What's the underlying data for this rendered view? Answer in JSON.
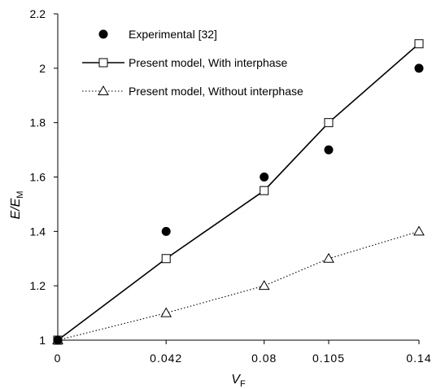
{
  "chart_data": {
    "type": "line",
    "xlabel": "V",
    "xlabel_sub": "F",
    "ylabel": "E/E",
    "ylabel_sub": "M",
    "x": [
      0,
      0.042,
      0.08,
      0.105,
      0.14
    ],
    "x_tick_labels": [
      "0",
      "0.042",
      "0.08",
      "0.105",
      "0.14"
    ],
    "ylim": [
      1,
      2.2
    ],
    "y_ticks": [
      1,
      1.2,
      1.4,
      1.6,
      1.8,
      2,
      2.2
    ],
    "y_tick_labels": [
      "1",
      "1.2",
      "1.4",
      "1.6",
      "1.8",
      "2",
      "2.2"
    ],
    "grid": false,
    "legend_position": "top-left",
    "series": [
      {
        "name": "Experimental [32]",
        "style": "markers",
        "marker": "filled-circle",
        "values": [
          1.0,
          1.4,
          1.6,
          1.7,
          2.0
        ]
      },
      {
        "name": "Present model, With interphase",
        "style": "solid",
        "marker": "open-square",
        "values": [
          1.0,
          1.3,
          1.55,
          1.8,
          2.09
        ]
      },
      {
        "name": "Present model, Without interphase",
        "style": "dotted",
        "marker": "open-triangle",
        "values": [
          1.0,
          1.1,
          1.2,
          1.3,
          1.4
        ]
      }
    ],
    "colors": {
      "ink": "#000000",
      "background": "#ffffff"
    }
  }
}
